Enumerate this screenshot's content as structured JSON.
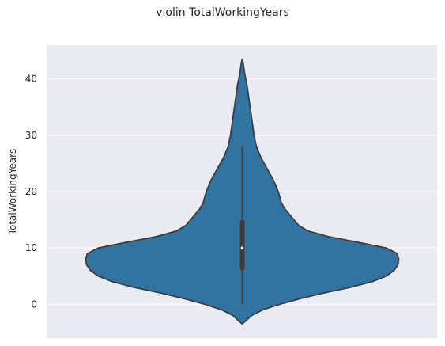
{
  "chart_data": {
    "type": "violin",
    "title": "violin TotalWorkingYears",
    "xlabel": "",
    "ylabel": "TotalWorkingYears",
    "ylim": [
      -6,
      46
    ],
    "yticks": [
      0,
      10,
      20,
      30,
      40
    ],
    "grid": true,
    "colors": {
      "background": "#eaeaf2",
      "body": "#3274a1",
      "outline": "#3d3d3d",
      "grid": "#ffffff",
      "box": "#3d3d3d",
      "median": "#ffffff"
    },
    "series": [
      {
        "density_profile": [
          [
            -3.5,
            0.0
          ],
          [
            -3.0,
            0.02
          ],
          [
            -2.0,
            0.06
          ],
          [
            -1.0,
            0.13
          ],
          [
            0.0,
            0.24
          ],
          [
            1.0,
            0.37
          ],
          [
            2.0,
            0.52
          ],
          [
            3.0,
            0.69
          ],
          [
            4.0,
            0.83
          ],
          [
            5.0,
            0.92
          ],
          [
            6.0,
            0.97
          ],
          [
            7.0,
            0.995
          ],
          [
            8.0,
            1.0
          ],
          [
            9.0,
            0.99
          ],
          [
            10.0,
            0.92
          ],
          [
            11.0,
            0.74
          ],
          [
            12.0,
            0.55
          ],
          [
            13.0,
            0.42
          ],
          [
            14.0,
            0.36
          ],
          [
            15.0,
            0.33
          ],
          [
            16.0,
            0.3
          ],
          [
            17.0,
            0.27
          ],
          [
            18.0,
            0.25
          ],
          [
            20.0,
            0.23
          ],
          [
            22.0,
            0.2
          ],
          [
            24.0,
            0.16
          ],
          [
            26.0,
            0.12
          ],
          [
            28.0,
            0.09
          ],
          [
            30.0,
            0.075
          ],
          [
            32.0,
            0.065
          ],
          [
            34.0,
            0.055
          ],
          [
            36.0,
            0.045
          ],
          [
            38.0,
            0.035
          ],
          [
            39.0,
            0.03
          ],
          [
            40.0,
            0.022
          ],
          [
            41.0,
            0.015
          ],
          [
            42.0,
            0.01
          ],
          [
            43.0,
            0.005
          ],
          [
            43.5,
            0.0
          ]
        ],
        "min": 0,
        "q1": 6,
        "median": 10,
        "q3": 15,
        "max": 28
      }
    ]
  }
}
